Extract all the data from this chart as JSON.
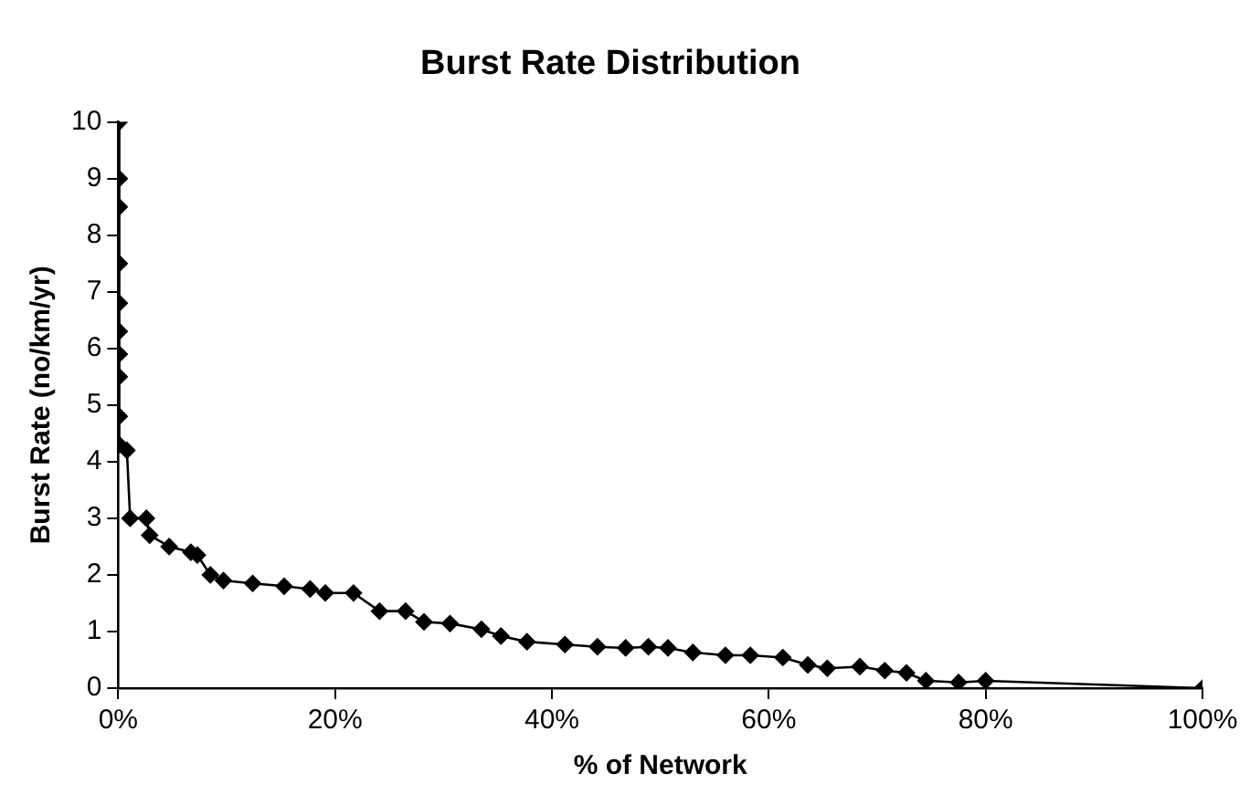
{
  "chart_data": {
    "type": "line",
    "title": "Burst Rate Distribution",
    "xlabel": "% of Network",
    "ylabel": "Burst Rate (no/km/yr)",
    "x": [
      0.1,
      0.1,
      0.1,
      0.1,
      0.1,
      0.1,
      0.1,
      0.1,
      0.1,
      0.1,
      0.8,
      1.1,
      2.6,
      2.9,
      4.7,
      6.7,
      7.3,
      8.5,
      9.7,
      12.4,
      15.3,
      17.7,
      19.1,
      21.7,
      24.1,
      26.5,
      28.2,
      30.6,
      33.5,
      35.3,
      37.7,
      41.2,
      44.2,
      46.8,
      48.9,
      50.7,
      53,
      56,
      58.3,
      61.3,
      63.6,
      65.4,
      68.4,
      70.7,
      72.7,
      74.5,
      77.5,
      80,
      100
    ],
    "series": [
      {
        "color": "#000000",
        "values": [
          10,
          9,
          8.5,
          7.5,
          6.8,
          6.3,
          5.9,
          5.5,
          4.8,
          4.3,
          4.2,
          3.0,
          3.0,
          2.7,
          2.5,
          2.4,
          2.35,
          2.0,
          1.9,
          1.85,
          1.8,
          1.75,
          1.68,
          1.68,
          1.36,
          1.36,
          1.17,
          1.14,
          1.04,
          0.92,
          0.82,
          0.77,
          0.73,
          0.71,
          0.73,
          0.71,
          0.63,
          0.58,
          0.58,
          0.54,
          0.41,
          0.35,
          0.38,
          0.31,
          0.27,
          0.13,
          0.1,
          0.13,
          0
        ]
      }
    ],
    "xlim": [
      0,
      100
    ],
    "xticks": [
      {
        "value": 0,
        "label": "0%"
      },
      {
        "value": 20,
        "label": "20%"
      },
      {
        "value": 40,
        "label": "40%"
      },
      {
        "value": 60,
        "label": "60%"
      },
      {
        "value": 80,
        "label": "80%"
      },
      {
        "value": 100,
        "label": "100%"
      }
    ],
    "ylim": [
      0,
      10
    ],
    "yticks": [
      0,
      1,
      2,
      3,
      4,
      5,
      6,
      7,
      8,
      9,
      10
    ],
    "grid": false,
    "legend": false,
    "marker": "diamond",
    "line_style": "solid"
  }
}
